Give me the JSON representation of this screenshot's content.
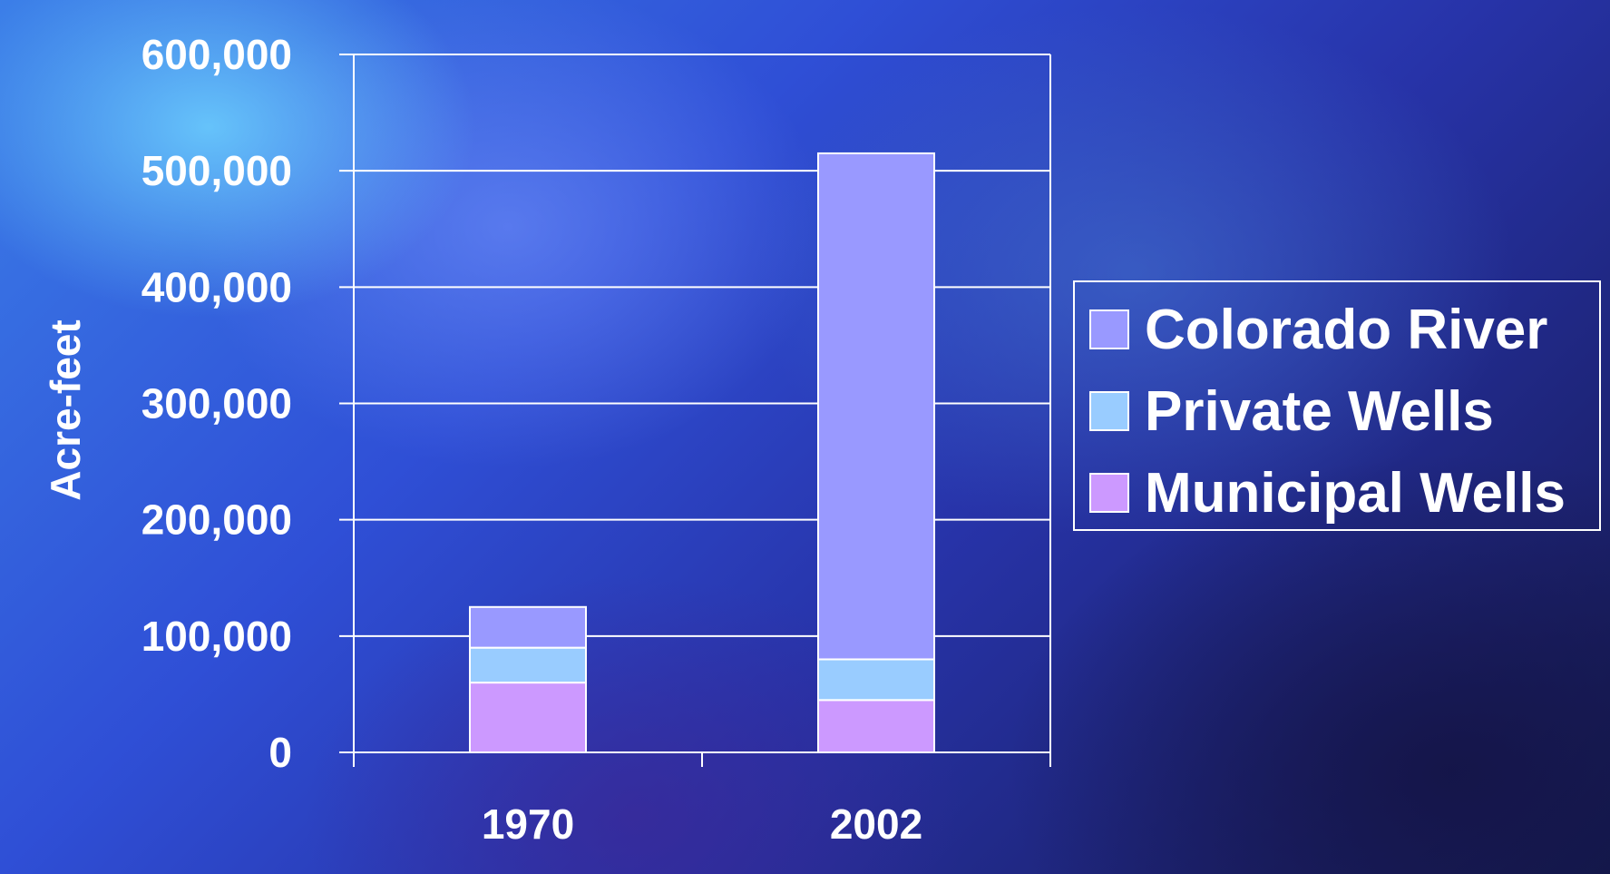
{
  "chart_data": {
    "type": "bar",
    "stacked": true,
    "categories": [
      "1970",
      "2002"
    ],
    "series": [
      {
        "name": "Municipal Wells",
        "color": "#cc99ff",
        "values": [
          60000,
          45000
        ]
      },
      {
        "name": "Private Wells",
        "color": "#99ccff",
        "values": [
          30000,
          35000
        ]
      },
      {
        "name": "Colorado River",
        "color": "#9999ff",
        "values": [
          35000,
          435000
        ]
      }
    ],
    "ylabel": "Acre-feet",
    "xlabel": "",
    "ylim": [
      0,
      600000
    ],
    "yticks": [
      0,
      100000,
      200000,
      300000,
      400000,
      500000,
      600000
    ],
    "ytick_labels": [
      "0",
      "100,000",
      "200,000",
      "300,000",
      "400,000",
      "500,000",
      "600,000"
    ],
    "grid": true,
    "legend": {
      "position": "right",
      "entries": [
        "Colorado River",
        "Private Wells",
        "Municipal Wells"
      ]
    }
  }
}
